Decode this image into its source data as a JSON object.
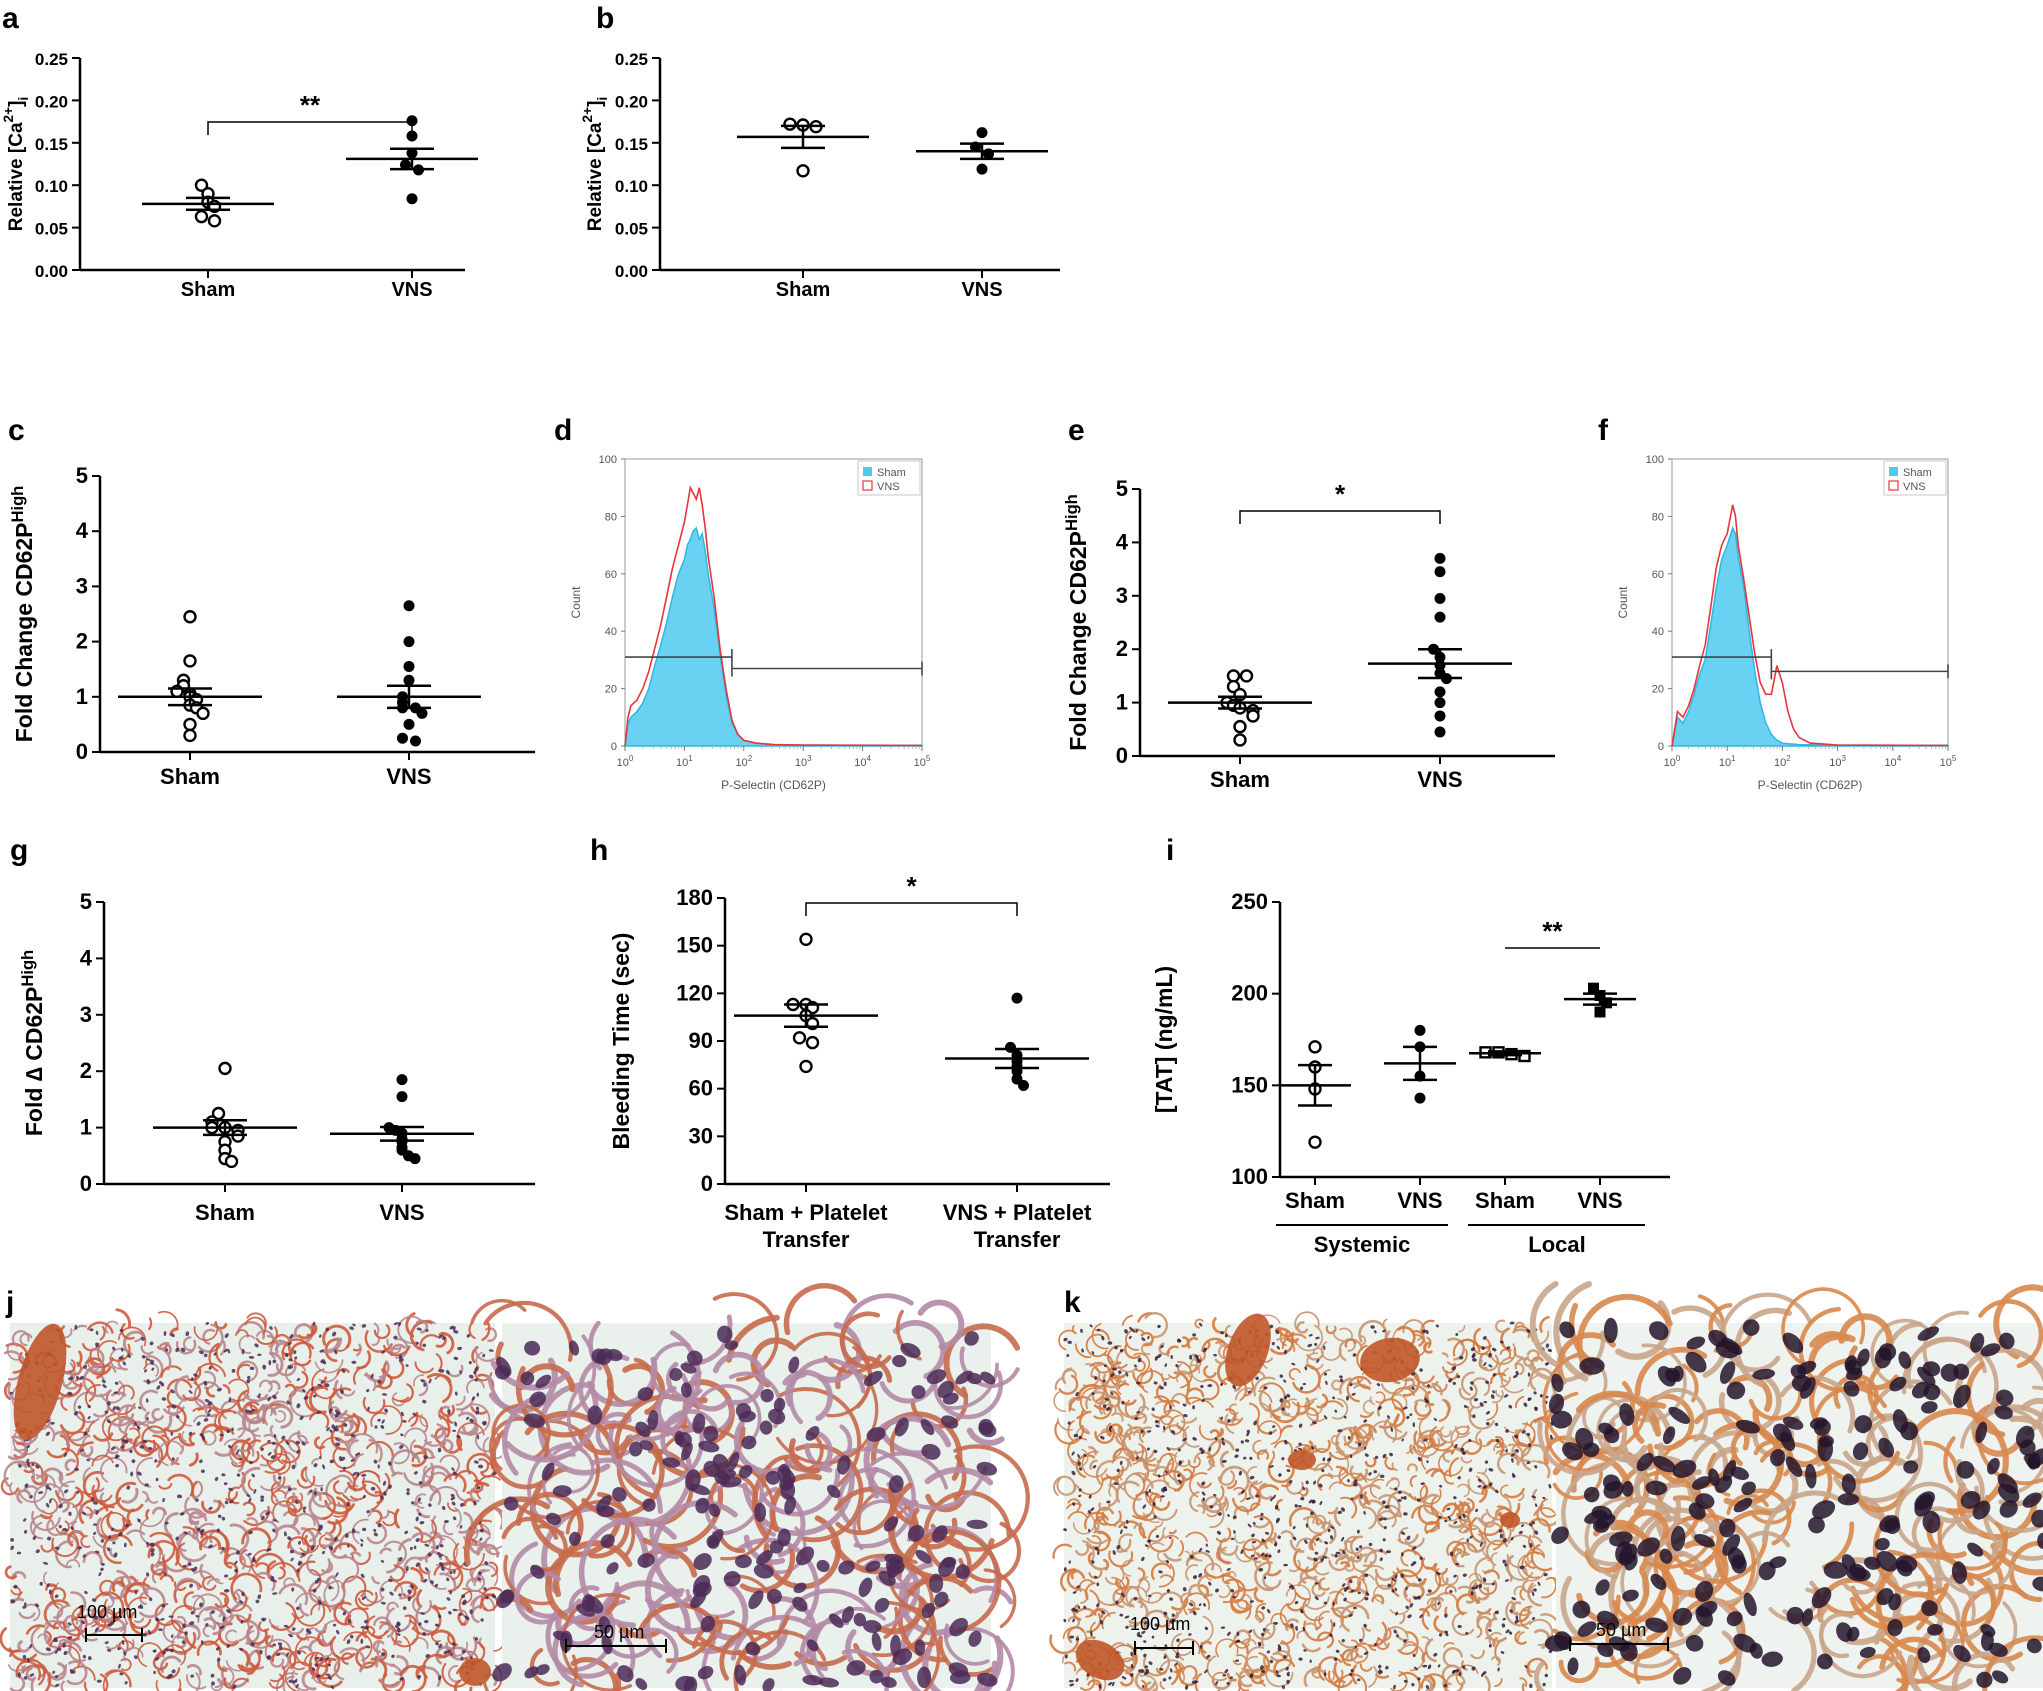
{
  "chart_data": [
    {
      "id": "a",
      "type": "scatter",
      "panel_label": "a",
      "ylabel_main": "Relative [Ca",
      "ylabel_sup": "2+",
      "ylabel_end": "]",
      "ylabel_sub": "i",
      "ylim": [
        0,
        0.25
      ],
      "yticks": [
        "0.00",
        "0.05",
        "0.10",
        "0.15",
        "0.20",
        "0.25"
      ],
      "categories": [
        "Sham",
        "VNS"
      ],
      "series": [
        {
          "name": "Sham",
          "marker": "open-circle",
          "values": [
            0.1,
            0.09,
            0.08,
            0.075,
            0.063,
            0.058
          ],
          "mean": 0.078,
          "sem": 0.007
        },
        {
          "name": "VNS",
          "marker": "filled-circle",
          "values": [
            0.176,
            0.158,
            0.138,
            0.124,
            0.118,
            0.084
          ],
          "mean": 0.131,
          "sem": 0.012
        }
      ],
      "significance": "**"
    },
    {
      "id": "b",
      "type": "scatter",
      "panel_label": "b",
      "ylabel_main": "Relative [Ca",
      "ylabel_sup": "2+",
      "ylabel_end": "]",
      "ylabel_sub": "i",
      "ylim": [
        0,
        0.25
      ],
      "yticks": [
        "0.00",
        "0.05",
        "0.10",
        "0.15",
        "0.20",
        "0.25"
      ],
      "categories": [
        "Sham",
        "VNS"
      ],
      "series": [
        {
          "name": "Sham",
          "marker": "open-circle",
          "values": [
            0.172,
            0.171,
            0.169,
            0.117
          ],
          "mean": 0.157,
          "sem": 0.013
        },
        {
          "name": "VNS",
          "marker": "filled-circle",
          "values": [
            0.162,
            0.145,
            0.137,
            0.119
          ],
          "mean": 0.14,
          "sem": 0.009
        }
      ]
    },
    {
      "id": "c",
      "type": "scatter",
      "panel_label": "c",
      "ylabel_main": "Fold Change CD62P",
      "ylabel_sup": "High",
      "ylim": [
        0,
        5
      ],
      "yticks": [
        "0",
        "1",
        "2",
        "3",
        "4",
        "5"
      ],
      "categories": [
        "Sham",
        "VNS"
      ],
      "series": [
        {
          "name": "Sham",
          "marker": "open-circle",
          "values": [
            2.45,
            1.65,
            1.3,
            1.2,
            1.1,
            1.05,
            1.0,
            0.95,
            0.85,
            0.8,
            0.7,
            0.5,
            0.3
          ],
          "mean": 1.0,
          "sem": 0.15
        },
        {
          "name": "VNS",
          "marker": "filled-circle",
          "values": [
            2.65,
            2.0,
            1.55,
            1.3,
            1.0,
            0.9,
            0.8,
            0.8,
            0.7,
            0.5,
            0.25,
            0.2
          ],
          "mean": 1.0,
          "sem": 0.2
        }
      ]
    },
    {
      "id": "d",
      "type": "histogram",
      "panel_label": "d",
      "ylabel": "Count",
      "xlabel": "P-Selectin (CD62P)",
      "ylim": [
        0,
        100
      ],
      "yticks": [
        "0",
        "20",
        "40",
        "60",
        "80",
        "100"
      ],
      "xtick_exponents": [
        "0",
        "1",
        "2",
        "3",
        "4",
        "5"
      ],
      "legend": [
        "Sham",
        "VNS"
      ],
      "sham_curve": [
        [
          0.0,
          0
        ],
        [
          0.05,
          8
        ],
        [
          0.1,
          10
        ],
        [
          0.2,
          12
        ],
        [
          0.3,
          15
        ],
        [
          0.4,
          20
        ],
        [
          0.5,
          28
        ],
        [
          0.6,
          35
        ],
        [
          0.7,
          43
        ],
        [
          0.8,
          52
        ],
        [
          0.9,
          60
        ],
        [
          1.0,
          65
        ],
        [
          1.05,
          70
        ],
        [
          1.1,
          72
        ],
        [
          1.15,
          75
        ],
        [
          1.2,
          76
        ],
        [
          1.25,
          72
        ],
        [
          1.3,
          74
        ],
        [
          1.35,
          68
        ],
        [
          1.4,
          60
        ],
        [
          1.5,
          48
        ],
        [
          1.6,
          32
        ],
        [
          1.7,
          18
        ],
        [
          1.8,
          8
        ],
        [
          1.9,
          4
        ],
        [
          2.0,
          2
        ],
        [
          2.2,
          1
        ],
        [
          2.5,
          0.5
        ],
        [
          3.0,
          0.3
        ],
        [
          5.0,
          0.2
        ]
      ],
      "vns_curve": [
        [
          0.0,
          0
        ],
        [
          0.05,
          10
        ],
        [
          0.1,
          14
        ],
        [
          0.2,
          16
        ],
        [
          0.3,
          20
        ],
        [
          0.4,
          26
        ],
        [
          0.5,
          34
        ],
        [
          0.6,
          42
        ],
        [
          0.7,
          52
        ],
        [
          0.8,
          62
        ],
        [
          0.9,
          70
        ],
        [
          1.0,
          78
        ],
        [
          1.05,
          84
        ],
        [
          1.1,
          90
        ],
        [
          1.15,
          88
        ],
        [
          1.2,
          86
        ],
        [
          1.25,
          90
        ],
        [
          1.3,
          84
        ],
        [
          1.35,
          76
        ],
        [
          1.4,
          66
        ],
        [
          1.5,
          52
        ],
        [
          1.6,
          34
        ],
        [
          1.7,
          20
        ],
        [
          1.8,
          9
        ],
        [
          1.9,
          4
        ],
        [
          2.0,
          2
        ],
        [
          2.2,
          1
        ],
        [
          2.5,
          0.5
        ],
        [
          3.0,
          0.3
        ],
        [
          5.0,
          0.2
        ]
      ],
      "gate_left": {
        "x1": 0.0,
        "x2": 1.8,
        "y": 31
      },
      "gate_right": {
        "x1": 1.8,
        "x2": 5.0,
        "y": 27
      }
    },
    {
      "id": "e",
      "type": "scatter",
      "panel_label": "e",
      "ylabel_main": "Fold Change CD62P",
      "ylabel_sup": "High",
      "ylim": [
        0,
        5
      ],
      "yticks": [
        "0",
        "1",
        "2",
        "3",
        "4",
        "5"
      ],
      "categories": [
        "Sham",
        "VNS"
      ],
      "series": [
        {
          "name": "Sham",
          "marker": "open-circle",
          "values": [
            1.5,
            1.5,
            1.3,
            1.15,
            1.0,
            0.95,
            0.9,
            0.85,
            0.75,
            0.55,
            0.3
          ],
          "mean": 1.0,
          "sem": 0.11
        },
        {
          "name": "VNS",
          "marker": "filled-circle",
          "values": [
            3.7,
            3.45,
            2.95,
            2.6,
            2.0,
            1.85,
            1.7,
            1.55,
            1.45,
            1.2,
            1.0,
            0.75,
            0.45
          ],
          "mean": 1.73,
          "sem": 0.27
        }
      ],
      "significance": "*"
    },
    {
      "id": "f",
      "type": "histogram",
      "panel_label": "f",
      "ylabel": "Count",
      "xlabel": "P-Selectin (CD62P)",
      "ylim": [
        0,
        100
      ],
      "yticks": [
        "0",
        "20",
        "40",
        "60",
        "80",
        "100"
      ],
      "xtick_exponents": [
        "0",
        "1",
        "2",
        "3",
        "4",
        "5"
      ],
      "legend": [
        "Sham",
        "VNS"
      ],
      "sham_curve": [
        [
          0.0,
          0
        ],
        [
          0.1,
          10
        ],
        [
          0.2,
          8
        ],
        [
          0.3,
          12
        ],
        [
          0.4,
          18
        ],
        [
          0.5,
          25
        ],
        [
          0.6,
          30
        ],
        [
          0.7,
          42
        ],
        [
          0.8,
          55
        ],
        [
          0.9,
          65
        ],
        [
          1.0,
          70
        ],
        [
          1.1,
          76
        ],
        [
          1.15,
          74
        ],
        [
          1.2,
          66
        ],
        [
          1.3,
          55
        ],
        [
          1.4,
          40
        ],
        [
          1.5,
          26
        ],
        [
          1.6,
          15
        ],
        [
          1.7,
          8
        ],
        [
          1.8,
          4
        ],
        [
          1.9,
          2
        ],
        [
          2.0,
          1
        ],
        [
          2.3,
          0.5
        ],
        [
          3.0,
          0.3
        ],
        [
          5.0,
          0.2
        ]
      ],
      "vns_curve": [
        [
          0.0,
          0
        ],
        [
          0.1,
          12
        ],
        [
          0.2,
          10
        ],
        [
          0.3,
          14
        ],
        [
          0.4,
          20
        ],
        [
          0.5,
          28
        ],
        [
          0.6,
          35
        ],
        [
          0.7,
          48
        ],
        [
          0.8,
          62
        ],
        [
          0.9,
          70
        ],
        [
          1.0,
          74
        ],
        [
          1.1,
          84
        ],
        [
          1.15,
          80
        ],
        [
          1.2,
          70
        ],
        [
          1.3,
          58
        ],
        [
          1.4,
          45
        ],
        [
          1.5,
          32
        ],
        [
          1.6,
          22
        ],
        [
          1.7,
          18
        ],
        [
          1.8,
          18
        ],
        [
          1.9,
          28
        ],
        [
          2.0,
          22
        ],
        [
          2.1,
          12
        ],
        [
          2.2,
          6
        ],
        [
          2.3,
          3
        ],
        [
          2.5,
          1
        ],
        [
          3.0,
          0.3
        ],
        [
          5.0,
          0.2
        ]
      ],
      "gate_left": {
        "x1": 0.0,
        "x2": 1.8,
        "y": 31
      },
      "gate_right": {
        "x1": 1.8,
        "x2": 5.0,
        "y": 26
      }
    },
    {
      "id": "g",
      "type": "scatter",
      "panel_label": "g",
      "ylabel_main": "Fold ∆ CD62P",
      "ylabel_sup": "High",
      "ylim": [
        0,
        5
      ],
      "yticks": [
        "0",
        "1",
        "2",
        "3",
        "4",
        "5"
      ],
      "categories": [
        "Sham",
        "VNS"
      ],
      "series": [
        {
          "name": "Sham",
          "marker": "open-circle",
          "values": [
            2.05,
            1.25,
            1.1,
            1.0,
            1.0,
            0.95,
            0.85,
            0.75,
            0.6,
            0.45,
            0.4
          ],
          "mean": 1.0,
          "sem": 0.13
        },
        {
          "name": "VNS",
          "marker": "filled-circle",
          "values": [
            1.85,
            1.55,
            1.0,
            0.95,
            0.9,
            0.8,
            0.75,
            0.65,
            0.6,
            0.5,
            0.45
          ],
          "mean": 0.89,
          "sem": 0.12
        }
      ]
    },
    {
      "id": "h",
      "type": "scatter",
      "panel_label": "h",
      "ylabel": "Bleeding Time (sec)",
      "ylim": [
        0,
        180
      ],
      "yticks": [
        "0",
        "30",
        "60",
        "90",
        "120",
        "150",
        "180"
      ],
      "categories": [
        "Sham + Platelet",
        "VNS + Platelet"
      ],
      "categories_line2": [
        "Transfer",
        "Transfer"
      ],
      "series": [
        {
          "name": "Sham + Platelet Transfer",
          "marker": "open-circle",
          "values": [
            154,
            113,
            113,
            111,
            106,
            101,
            92,
            89,
            74
          ],
          "mean": 106,
          "sem": 7
        },
        {
          "name": "VNS + Platelet Transfer",
          "marker": "filled-circle",
          "values": [
            117,
            86,
            81,
            77,
            74,
            71,
            66,
            62
          ],
          "mean": 79,
          "sem": 6
        }
      ],
      "significance": "*"
    },
    {
      "id": "i",
      "type": "scatter",
      "panel_label": "i",
      "ylabel": "[TAT] (ng/mL)",
      "ylim": [
        100,
        250
      ],
      "yticks": [
        "100",
        "150",
        "200",
        "250"
      ],
      "categories": [
        "Sham",
        "VNS",
        "Sham",
        "VNS"
      ],
      "groups": [
        "Systemic",
        "Local"
      ],
      "series": [
        {
          "name": "Systemic Sham",
          "marker": "open-circle",
          "values": [
            171,
            160,
            148,
            119
          ],
          "mean": 150,
          "sem": 11
        },
        {
          "name": "Systemic VNS",
          "marker": "filled-circle",
          "values": [
            180,
            171,
            155,
            143
          ],
          "mean": 162,
          "sem": 9
        },
        {
          "name": "Local Sham",
          "marker": "open-square",
          "values": [
            168,
            168,
            167,
            166
          ],
          "mean": 167.5,
          "sem": 1
        },
        {
          "name": "Local VNS",
          "marker": "filled-square",
          "values": [
            203,
            199,
            195,
            190
          ],
          "mean": 197,
          "sem": 3
        }
      ],
      "significance": "**"
    }
  ],
  "micrographs": {
    "j_label": "j",
    "k_label": "k",
    "scale_100": "100 µm",
    "scale_50": "50 µm"
  },
  "colors": {
    "sham_fill": "#4fc9ee",
    "vns_line": "#e8343b",
    "tissue_bg": "#e4eee9",
    "tissue_pink": "#d27a4c",
    "tissue_nuclei": "#3b2448"
  }
}
